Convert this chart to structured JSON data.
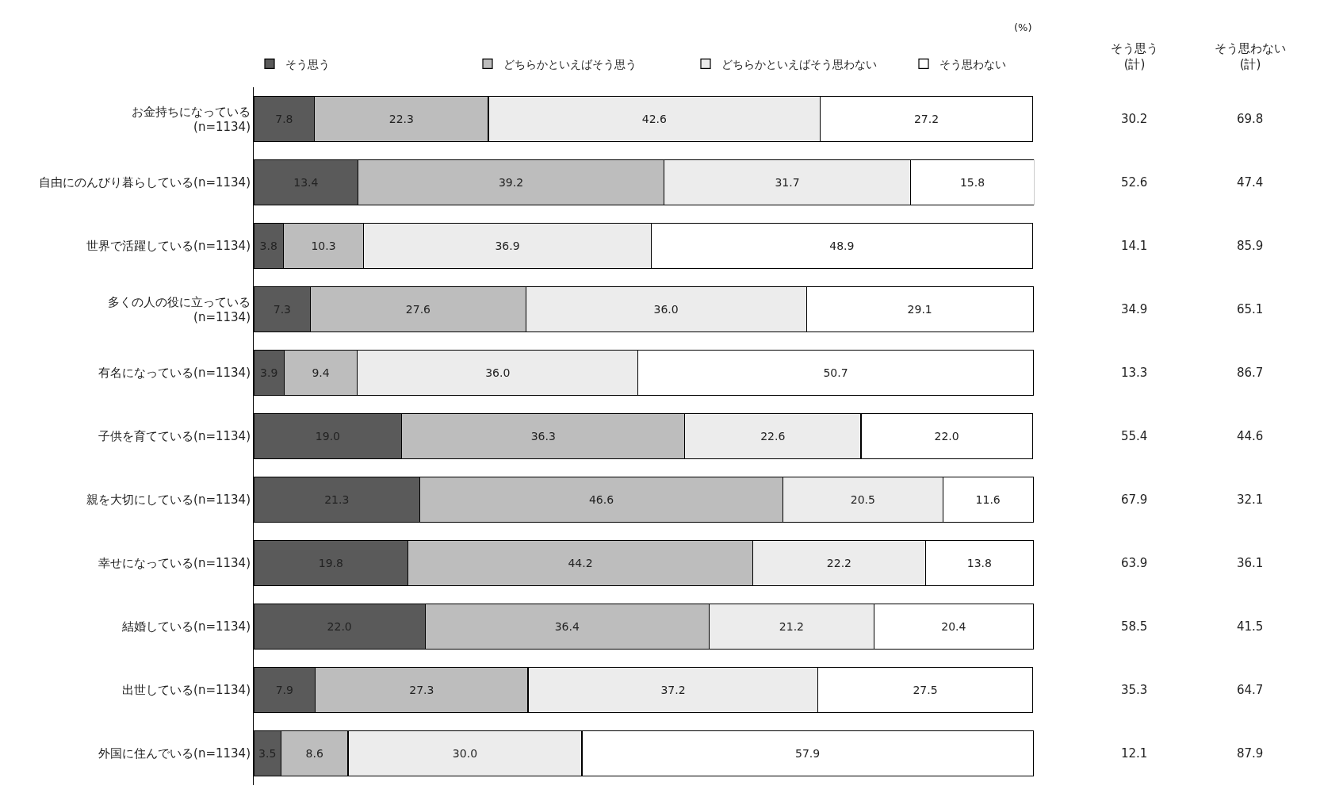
{
  "chart_data": [
    {
      "type": "bar",
      "orientation": "horizontal",
      "stacked": true,
      "legend": "top",
      "tick_labels": "y",
      "xlim": [
        0,
        100.1
      ],
      "annotations": [
        "(%)"
      ],
      "categories": [
        "お金持ちになっている\n(n=1134)",
        "自由にのんびり暮らしている(n=1134)",
        "世界で活躍している(n=1134)",
        "多くの人の役に立っている\n(n=1134)",
        "有名になっている(n=1134)",
        "子供を育てている(n=1134)",
        "親を大切にしている(n=1134)",
        "幸せになっている(n=1134)",
        "結婚している(n=1134)",
        "出世している(n=1134)",
        "外国に住んでいる(n=1134)"
      ],
      "series": [
        {
          "name": "そう思う",
          "color": "#5a5a5a",
          "values": [
            7.8,
            13.4,
            3.8,
            7.3,
            3.9,
            19.0,
            21.3,
            19.8,
            22.0,
            7.9,
            3.5
          ],
          "value_labels": [
            "7.8",
            "13.4",
            "3.8",
            "7.3",
            "3.9",
            "19.0",
            "21.3",
            "19.8",
            "22.0",
            "7.9",
            "3.5"
          ]
        },
        {
          "name": "どちらかといえばそう思う",
          "color": "#bdbdbd",
          "values": [
            22.3,
            39.2,
            10.3,
            27.6,
            9.4,
            36.3,
            46.6,
            44.2,
            36.4,
            27.3,
            8.6
          ],
          "value_labels": [
            "22.3",
            "39.2",
            "10.3",
            "27.6",
            "9.4",
            "36.3",
            "46.6",
            "44.2",
            "36.4",
            "27.3",
            "8.6"
          ]
        },
        {
          "name": "どちらかといえばそう思わない",
          "color": "#ececec",
          "values": [
            42.6,
            31.7,
            36.9,
            36.0,
            36.0,
            22.6,
            20.5,
            22.2,
            21.2,
            37.2,
            30.0
          ],
          "value_labels": [
            "42.6",
            "31.7",
            "36.9",
            "36.0",
            "36.0",
            "22.6",
            "20.5",
            "22.2",
            "21.2",
            "37.2",
            "30.0"
          ]
        },
        {
          "name": "そう思わない",
          "color": "#ffffff",
          "values": [
            27.2,
            15.8,
            48.9,
            29.1,
            50.7,
            22.0,
            11.6,
            13.8,
            20.4,
            27.5,
            57.9
          ],
          "value_labels": [
            "27.2",
            "15.8",
            "48.9",
            "29.1",
            "50.7",
            "22.0",
            "11.6",
            "13.8",
            "20.4",
            "27.5",
            "57.9"
          ]
        }
      ]
    },
    {
      "type": "other",
      "annotations": [
        "そう思う\n(計)",
        "そう思わない\n(計)",
        "30.2",
        "69.8",
        "52.6",
        "47.4",
        "14.1",
        "85.9",
        "34.9",
        "65.1",
        "13.3",
        "86.7",
        "55.4",
        "44.6",
        "67.9",
        "32.1",
        "63.9",
        "36.1",
        "58.5",
        "41.5",
        "35.3",
        "64.7",
        "12.1",
        "87.9"
      ]
    }
  ]
}
